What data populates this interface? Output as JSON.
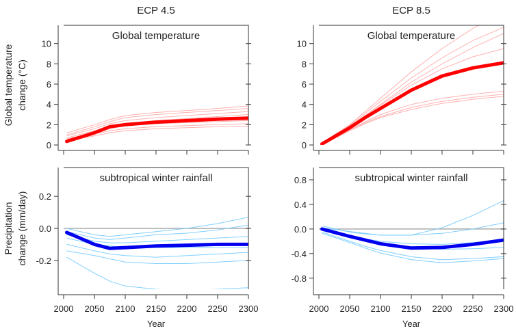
{
  "chart_data": [
    {
      "type": "line",
      "title": "ECP 4.5",
      "annotation": "Global temperature",
      "ylabel": "Global temperature change (°C)",
      "xlabel": "",
      "xlim": [
        2000,
        2300
      ],
      "ylim": [
        0,
        11.8
      ],
      "yticks": [
        0,
        2,
        4,
        6,
        8,
        10
      ],
      "xticks": [
        2000,
        2050,
        2100,
        2150,
        2200,
        2250,
        2300
      ],
      "show_xtick_labels": false,
      "color": "#ff0000",
      "ensemble_color": "#ffb0b0",
      "zero_line": false,
      "x": [
        2005,
        2050,
        2075,
        2100,
        2150,
        2200,
        2250,
        2300
      ],
      "mean": [
        0.35,
        1.2,
        1.8,
        2.0,
        2.25,
        2.4,
        2.55,
        2.65
      ],
      "ensemble": [
        [
          1.2,
          2.0,
          2.5,
          2.9,
          3.2,
          3.4,
          3.6,
          3.85
        ],
        [
          1.0,
          1.8,
          2.3,
          2.7,
          3.0,
          3.2,
          3.4,
          3.6
        ],
        [
          0.9,
          1.6,
          2.1,
          2.4,
          2.7,
          2.9,
          3.1,
          3.3
        ],
        [
          0.7,
          1.4,
          1.8,
          2.1,
          2.4,
          2.6,
          2.8,
          3.0
        ],
        [
          0.6,
          1.2,
          1.6,
          1.9,
          2.1,
          2.2,
          2.3,
          2.4
        ],
        [
          0.5,
          1.1,
          1.4,
          1.6,
          1.8,
          1.9,
          2.0,
          2.1
        ],
        [
          0.4,
          0.9,
          1.2,
          1.4,
          1.6,
          1.7,
          1.8,
          1.8
        ]
      ]
    },
    {
      "type": "line",
      "title": "ECP 8.5",
      "annotation": "Global temperature",
      "ylabel": "",
      "xlabel": "",
      "xlim": [
        2000,
        2300
      ],
      "ylim": [
        0,
        11.8
      ],
      "yticks": [
        0,
        2,
        4,
        6,
        8,
        10
      ],
      "xticks": [
        2000,
        2050,
        2100,
        2150,
        2200,
        2250,
        2300
      ],
      "show_xtick_labels": false,
      "color": "#ff0000",
      "ensemble_color": "#ffb0b0",
      "zero_line": false,
      "x": [
        2005,
        2050,
        2075,
        2100,
        2150,
        2200,
        2250,
        2300
      ],
      "mean": [
        0.1,
        1.7,
        2.7,
        3.6,
        5.4,
        6.8,
        7.6,
        8.1
      ],
      "ensemble": [
        [
          0.2,
          2.0,
          3.3,
          4.6,
          7.2,
          9.5,
          11.5,
          13.0
        ],
        [
          0.2,
          1.9,
          3.1,
          4.3,
          6.6,
          8.6,
          10.3,
          11.6
        ],
        [
          0.1,
          1.8,
          2.9,
          4.0,
          6.2,
          8.0,
          9.6,
          11.0
        ],
        [
          0.1,
          1.8,
          2.9,
          3.9,
          5.9,
          7.5,
          8.7,
          9.5
        ],
        [
          0.1,
          1.5,
          2.3,
          3.0,
          4.0,
          4.6,
          5.0,
          5.3
        ],
        [
          0.0,
          1.4,
          2.2,
          2.8,
          3.7,
          4.3,
          4.7,
          5.0
        ],
        [
          0.0,
          1.4,
          2.1,
          2.7,
          3.5,
          4.1,
          4.5,
          4.8
        ]
      ]
    },
    {
      "type": "line",
      "title": "",
      "annotation": "subtropical winter rainfall",
      "ylabel": "Precipitation change (mm/day)",
      "xlabel": "Year",
      "xlim": [
        2000,
        2300
      ],
      "ylim": [
        -0.38,
        0.38
      ],
      "yticks": [
        -0.2,
        0.0,
        0.2
      ],
      "ytick_labels": [
        "-0.2",
        "0.0",
        "0.2"
      ],
      "xticks": [
        2000,
        2050,
        2100,
        2150,
        2200,
        2250,
        2300
      ],
      "show_xtick_labels": true,
      "color": "#0000ee",
      "ensemble_color": "#7fcfff",
      "zero_line": true,
      "x": [
        2005,
        2050,
        2075,
        2100,
        2150,
        2200,
        2250,
        2300
      ],
      "mean": [
        -0.025,
        -0.1,
        -0.125,
        -0.12,
        -0.11,
        -0.105,
        -0.1,
        -0.1
      ],
      "ensemble": [
        [
          0.0,
          -0.04,
          -0.05,
          -0.04,
          -0.02,
          0.0,
          0.03,
          0.07
        ],
        [
          -0.02,
          -0.06,
          -0.07,
          -0.06,
          -0.04,
          -0.03,
          -0.01,
          0.02
        ],
        [
          -0.04,
          -0.08,
          -0.09,
          -0.09,
          -0.08,
          -0.07,
          -0.06,
          -0.05
        ],
        [
          -0.06,
          -0.1,
          -0.11,
          -0.12,
          -0.12,
          -0.12,
          -0.12,
          -0.12
        ],
        [
          -0.1,
          -0.14,
          -0.16,
          -0.17,
          -0.18,
          -0.17,
          -0.16,
          -0.15
        ],
        [
          -0.14,
          -0.17,
          -0.19,
          -0.21,
          -0.22,
          -0.22,
          -0.21,
          -0.2
        ],
        [
          -0.18,
          -0.28,
          -0.33,
          -0.36,
          -0.38,
          -0.39,
          -0.38,
          -0.37
        ]
      ]
    },
    {
      "type": "line",
      "title": "",
      "annotation": "subtropical winter rainfall",
      "ylabel": "",
      "xlabel": "Year",
      "xlim": [
        2000,
        2300
      ],
      "ylim": [
        -0.98,
        1.0
      ],
      "yticks": [
        -0.8,
        -0.4,
        0.0,
        0.4,
        0.8
      ],
      "ytick_labels": [
        "-0.8",
        "-0.4",
        "0.0",
        "0.4",
        "0.8"
      ],
      "xticks": [
        2000,
        2050,
        2100,
        2150,
        2200,
        2250,
        2300
      ],
      "show_xtick_labels": true,
      "color": "#0000ee",
      "ensemble_color": "#7fcfff",
      "zero_line": true,
      "x": [
        2005,
        2050,
        2075,
        2100,
        2150,
        2200,
        2250,
        2300
      ],
      "mean": [
        0.0,
        -0.12,
        -0.18,
        -0.24,
        -0.31,
        -0.3,
        -0.25,
        -0.18
      ],
      "ensemble": [
        [
          0.05,
          -0.05,
          -0.08,
          -0.1,
          -0.1,
          0.02,
          0.22,
          0.46
        ],
        [
          0.02,
          -0.04,
          -0.07,
          -0.1,
          -0.1,
          -0.07,
          0.0,
          0.1
        ],
        [
          0.0,
          -0.1,
          -0.16,
          -0.2,
          -0.24,
          -0.25,
          -0.22,
          -0.18
        ],
        [
          -0.02,
          -0.14,
          -0.2,
          -0.25,
          -0.3,
          -0.33,
          -0.32,
          -0.3
        ],
        [
          -0.05,
          -0.2,
          -0.28,
          -0.35,
          -0.45,
          -0.5,
          -0.48,
          -0.45
        ],
        [
          -0.07,
          -0.22,
          -0.31,
          -0.39,
          -0.5,
          -0.55,
          -0.52,
          -0.48
        ]
      ]
    }
  ]
}
